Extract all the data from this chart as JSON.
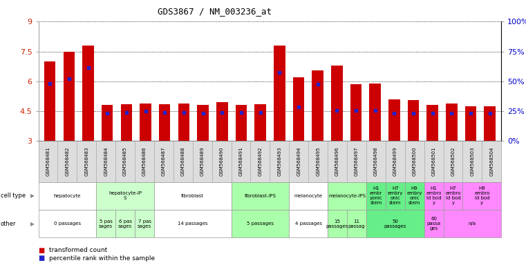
{
  "title": "GDS3867 / NM_003236_at",
  "samples": [
    "GSM568481",
    "GSM568482",
    "GSM568483",
    "GSM568484",
    "GSM568485",
    "GSM568486",
    "GSM568487",
    "GSM568488",
    "GSM568489",
    "GSM568490",
    "GSM568491",
    "GSM568492",
    "GSM568493",
    "GSM568494",
    "GSM568495",
    "GSM568496",
    "GSM568497",
    "GSM568498",
    "GSM568499",
    "GSM568500",
    "GSM568501",
    "GSM568502",
    "GSM568503",
    "GSM568504"
  ],
  "transformed_count": [
    7.0,
    7.5,
    7.8,
    4.8,
    4.85,
    4.9,
    4.85,
    4.9,
    4.8,
    4.95,
    4.8,
    4.85,
    7.8,
    6.2,
    6.55,
    6.8,
    5.85,
    5.88,
    5.1,
    5.05,
    4.8,
    4.9,
    4.75,
    4.75
  ],
  "percentile": [
    5.9,
    6.15,
    6.7,
    4.4,
    4.45,
    4.5,
    4.45,
    4.45,
    4.4,
    4.45,
    4.45,
    4.45,
    6.45,
    4.7,
    5.85,
    4.55,
    4.55,
    4.55,
    4.4,
    4.4,
    4.4,
    4.4,
    4.4,
    4.4
  ],
  "ylim": [
    3,
    9
  ],
  "yticks": [
    3,
    4.5,
    6,
    7.5,
    9
  ],
  "ytick_right_labels": [
    "0%",
    "25%",
    "50%",
    "75%",
    "100%"
  ],
  "bar_color": "#CC0000",
  "percentile_color": "#2222CC",
  "bar_bottom": 3.0,
  "bg_color": "#ffffff",
  "left_tick_color": "#CC2200",
  "right_tick_color": "#0000CC",
  "cell_type_groups": [
    {
      "label": "hepatocyte",
      "start": 0,
      "end": 2,
      "color": "#ffffff"
    },
    {
      "label": "hepatocyte-iP\nS",
      "start": 3,
      "end": 5,
      "color": "#ccffcc"
    },
    {
      "label": "fibroblast",
      "start": 6,
      "end": 9,
      "color": "#ffffff"
    },
    {
      "label": "fibroblast-IPS",
      "start": 10,
      "end": 12,
      "color": "#aaffaa"
    },
    {
      "label": "melanocyte",
      "start": 13,
      "end": 14,
      "color": "#ffffff"
    },
    {
      "label": "melanocyte-IPS",
      "start": 15,
      "end": 16,
      "color": "#aaffaa"
    },
    {
      "label": "H1\nembr\nyonic\nstem",
      "start": 17,
      "end": 17,
      "color": "#66ee88"
    },
    {
      "label": "H7\nembry\nonic\nstem",
      "start": 18,
      "end": 18,
      "color": "#66ee88"
    },
    {
      "label": "H9\nembry\nonic\nstem",
      "start": 19,
      "end": 19,
      "color": "#66ee88"
    },
    {
      "label": "H1\nembro\nid bod\ny",
      "start": 20,
      "end": 20,
      "color": "#ff88ff"
    },
    {
      "label": "H7\nembro\nid bod\ny",
      "start": 21,
      "end": 21,
      "color": "#ff88ff"
    },
    {
      "label": "H9\nembro\nid bod\ny",
      "start": 22,
      "end": 23,
      "color": "#ff88ff"
    }
  ],
  "other_groups": [
    {
      "label": "0 passages",
      "start": 0,
      "end": 2,
      "color": "#ffffff"
    },
    {
      "label": "5 pas\nsages",
      "start": 3,
      "end": 3,
      "color": "#ccffcc"
    },
    {
      "label": "6 pas\nsages",
      "start": 4,
      "end": 4,
      "color": "#ccffcc"
    },
    {
      "label": "7 pas\nsages",
      "start": 5,
      "end": 5,
      "color": "#ccffcc"
    },
    {
      "label": "14 passages",
      "start": 6,
      "end": 9,
      "color": "#ffffff"
    },
    {
      "label": "5 passages",
      "start": 10,
      "end": 12,
      "color": "#aaffaa"
    },
    {
      "label": "4 passages",
      "start": 13,
      "end": 14,
      "color": "#ffffff"
    },
    {
      "label": "15\npassages",
      "start": 15,
      "end": 15,
      "color": "#aaffaa"
    },
    {
      "label": "11\npassag",
      "start": 16,
      "end": 16,
      "color": "#aaffaa"
    },
    {
      "label": "50\npassages",
      "start": 17,
      "end": 19,
      "color": "#66ee88"
    },
    {
      "label": "60\npassa\nges",
      "start": 20,
      "end": 20,
      "color": "#ff88ff"
    },
    {
      "label": "n/a",
      "start": 21,
      "end": 23,
      "color": "#ff88ff"
    }
  ]
}
